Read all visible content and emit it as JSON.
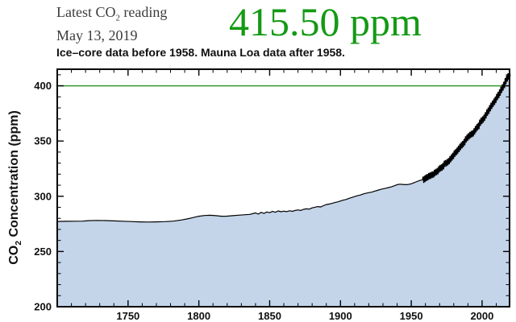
{
  "header": {
    "latest_label": {
      "prefix": "Latest CO",
      "sub": "2",
      "suffix": " reading"
    },
    "date": "May 13, 2019",
    "reading": "415.50 ppm",
    "reading_color": "#149a14",
    "subtitle": "Ice–core data before 1958. Mauna Loa data after 1958."
  },
  "chart_data": {
    "type": "area",
    "title": "Ice–core data before 1958. Mauna Loa data after 1958.",
    "xlabel": "",
    "ylabel": {
      "prefix": "CO",
      "sub": "2",
      "suffix": " Concentration (ppm)"
    },
    "xlim": [
      1700,
      2019.4
    ],
    "ylim": [
      200,
      415
    ],
    "x_ticks": [
      1750,
      1800,
      1850,
      1900,
      1950,
      2000
    ],
    "y_ticks": [
      200,
      250,
      300,
      350,
      400
    ],
    "x_minor_step": 10,
    "y_minor_step": 10,
    "grid": false,
    "legend": "none",
    "reference_line_y": 400,
    "reference_line_color": "#2f9b2f",
    "fill_color": "#c4d5ea",
    "line_color": "#000000",
    "series": [
      {
        "name": "Ice-core data (before 1958)",
        "points": [
          [
            1700,
            277.2
          ],
          [
            1706,
            277.3
          ],
          [
            1712,
            277.4
          ],
          [
            1718,
            277.5
          ],
          [
            1722,
            277.9
          ],
          [
            1728,
            278.1
          ],
          [
            1734,
            278.0
          ],
          [
            1740,
            277.7
          ],
          [
            1746,
            277.4
          ],
          [
            1752,
            277.1
          ],
          [
            1758,
            276.8
          ],
          [
            1764,
            276.7
          ],
          [
            1770,
            276.8
          ],
          [
            1776,
            277.0
          ],
          [
            1782,
            277.5
          ],
          [
            1788,
            278.6
          ],
          [
            1794,
            280.1
          ],
          [
            1800,
            281.9
          ],
          [
            1804,
            282.6
          ],
          [
            1808,
            282.8
          ],
          [
            1812,
            282.4
          ],
          [
            1816,
            281.9
          ],
          [
            1820,
            282.0
          ],
          [
            1824,
            282.4
          ],
          [
            1828,
            282.9
          ],
          [
            1832,
            283.2
          ],
          [
            1836,
            283.6
          ],
          [
            1840,
            284.9
          ],
          [
            1842,
            283.9
          ],
          [
            1844,
            285.4
          ],
          [
            1846,
            284.5
          ],
          [
            1848,
            285.8
          ],
          [
            1850,
            285.1
          ],
          [
            1852,
            286.3
          ],
          [
            1854,
            285.5
          ],
          [
            1856,
            286.7
          ],
          [
            1858,
            286.0
          ],
          [
            1860,
            286.5
          ],
          [
            1862,
            286.1
          ],
          [
            1864,
            286.9
          ],
          [
            1866,
            286.4
          ],
          [
            1868,
            287.2
          ],
          [
            1870,
            287.6
          ],
          [
            1872,
            287.2
          ],
          [
            1874,
            288.2
          ],
          [
            1876,
            288.6
          ],
          [
            1878,
            288.3
          ],
          [
            1880,
            289.5
          ],
          [
            1882,
            290.1
          ],
          [
            1884,
            290.7
          ],
          [
            1886,
            290.3
          ],
          [
            1888,
            291.5
          ],
          [
            1890,
            292.5
          ],
          [
            1892,
            292.9
          ],
          [
            1894,
            293.5
          ],
          [
            1896,
            294.3
          ],
          [
            1898,
            294.9
          ],
          [
            1900,
            295.7
          ],
          [
            1902,
            296.5
          ],
          [
            1904,
            297.1
          ],
          [
            1906,
            298.1
          ],
          [
            1908,
            298.9
          ],
          [
            1910,
            299.7
          ],
          [
            1912,
            300.5
          ],
          [
            1914,
            301.1
          ],
          [
            1916,
            302.1
          ],
          [
            1918,
            302.7
          ],
          [
            1920,
            303.3
          ],
          [
            1922,
            303.7
          ],
          [
            1924,
            304.5
          ],
          [
            1926,
            305.3
          ],
          [
            1928,
            306.1
          ],
          [
            1930,
            306.7
          ],
          [
            1932,
            307.3
          ],
          [
            1934,
            307.9
          ],
          [
            1936,
            308.5
          ],
          [
            1938,
            309.5
          ],
          [
            1940,
            310.5
          ],
          [
            1942,
            310.9
          ],
          [
            1944,
            310.7
          ],
          [
            1946,
            310.5
          ],
          [
            1948,
            310.7
          ],
          [
            1950,
            311.3
          ],
          [
            1952,
            312.3
          ],
          [
            1954,
            313.3
          ],
          [
            1956,
            314.3
          ],
          [
            1958,
            315.0
          ]
        ]
      },
      {
        "name": "Mauna Loa data (after 1958)",
        "seasonal_peak": 2.6,
        "seasonal_trough": 3.1,
        "end_point": [
          2019.37,
          415.5
        ],
        "annual_mean_points": [
          [
            1958,
            315.2
          ],
          [
            1959,
            316.0
          ],
          [
            1960,
            316.9
          ],
          [
            1961,
            317.6
          ],
          [
            1962,
            318.5
          ],
          [
            1963,
            319.0
          ],
          [
            1964,
            319.6
          ],
          [
            1965,
            320.0
          ],
          [
            1966,
            321.4
          ],
          [
            1967,
            322.2
          ],
          [
            1968,
            323.0
          ],
          [
            1969,
            324.6
          ],
          [
            1970,
            325.7
          ],
          [
            1971,
            326.3
          ],
          [
            1972,
            327.5
          ],
          [
            1973,
            329.7
          ],
          [
            1974,
            330.2
          ],
          [
            1975,
            331.1
          ],
          [
            1976,
            332.0
          ],
          [
            1977,
            333.8
          ],
          [
            1978,
            335.4
          ],
          [
            1979,
            336.8
          ],
          [
            1980,
            338.8
          ],
          [
            1981,
            340.1
          ],
          [
            1982,
            341.5
          ],
          [
            1983,
            343.2
          ],
          [
            1984,
            344.9
          ],
          [
            1985,
            346.4
          ],
          [
            1986,
            347.6
          ],
          [
            1987,
            349.3
          ],
          [
            1988,
            351.7
          ],
          [
            1989,
            353.2
          ],
          [
            1990,
            354.5
          ],
          [
            1991,
            355.7
          ],
          [
            1992,
            356.5
          ],
          [
            1993,
            357.2
          ],
          [
            1994,
            359.0
          ],
          [
            1995,
            361.0
          ],
          [
            1996,
            362.7
          ],
          [
            1997,
            363.9
          ],
          [
            1998,
            366.8
          ],
          [
            1999,
            368.5
          ],
          [
            2000,
            369.7
          ],
          [
            2001,
            371.3
          ],
          [
            2002,
            373.5
          ],
          [
            2003,
            376.0
          ],
          [
            2004,
            377.7
          ],
          [
            2005,
            380.0
          ],
          [
            2006,
            382.1
          ],
          [
            2007,
            384.0
          ],
          [
            2008,
            385.8
          ],
          [
            2009,
            387.6
          ],
          [
            2010,
            390.1
          ],
          [
            2011,
            391.9
          ],
          [
            2012,
            394.1
          ],
          [
            2013,
            396.7
          ],
          [
            2014,
            398.8
          ],
          [
            2015,
            401.0
          ],
          [
            2016,
            404.4
          ],
          [
            2017,
            406.8
          ],
          [
            2018,
            408.7
          ],
          [
            2019,
            411.7
          ]
        ]
      }
    ]
  }
}
